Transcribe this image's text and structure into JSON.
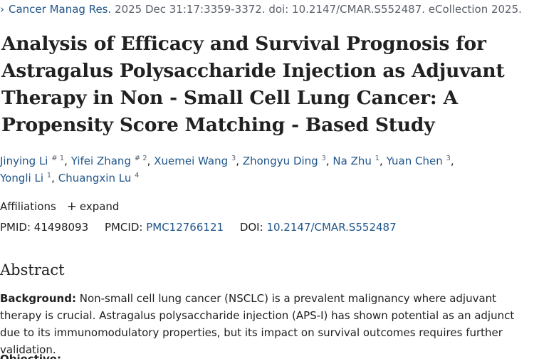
{
  "citation": {
    "chevron": "›",
    "journal": "Cancer Manag Res.",
    "details": "2025 Dec 31:17:3359-3372. doi: 10.2147/CMAR.S552487. eCollection 2025."
  },
  "title": "Analysis of Efficacy and Survival Prognosis for Astragalus Polysaccharide Injection as Adjuvant Therapy in Non - Small Cell Lung Cancer: A Propensity Score Matching - Based Study",
  "authors": [
    {
      "name": "Jinying Li",
      "sup": "# 1"
    },
    {
      "name": "Yifei Zhang",
      "sup": "# 2"
    },
    {
      "name": "Xuemei Wang",
      "sup": "3"
    },
    {
      "name": "Zhongyu Ding",
      "sup": "3"
    },
    {
      "name": "Na Zhu",
      "sup": "1"
    },
    {
      "name": "Yuan Chen",
      "sup": "3"
    },
    {
      "name": "Yongli Li",
      "sup": "1"
    },
    {
      "name": "Chuangxin Lu",
      "sup": "4"
    }
  ],
  "affiliations": {
    "label": "Affiliations",
    "plus": "+",
    "expand": "expand"
  },
  "ids": {
    "pmid_label": "PMID:",
    "pmid": "41498093",
    "pmcid_label": "PMCID:",
    "pmcid": "PMC12766121",
    "doi_label": "DOI:",
    "doi": "10.2147/CMAR.S552487"
  },
  "abstract": {
    "heading": "Abstract",
    "background_label": "Background:",
    "background_text": " Non-small cell lung cancer (NSCLC) is a prevalent malignancy where adjuvant therapy is crucial. Astragalus polysaccharide injection (APS-I) has shown potential as an adjunct due to its immunomodulatory properties, but its impact on survival outcomes requires further validation.",
    "next_label": "Objective:"
  }
}
